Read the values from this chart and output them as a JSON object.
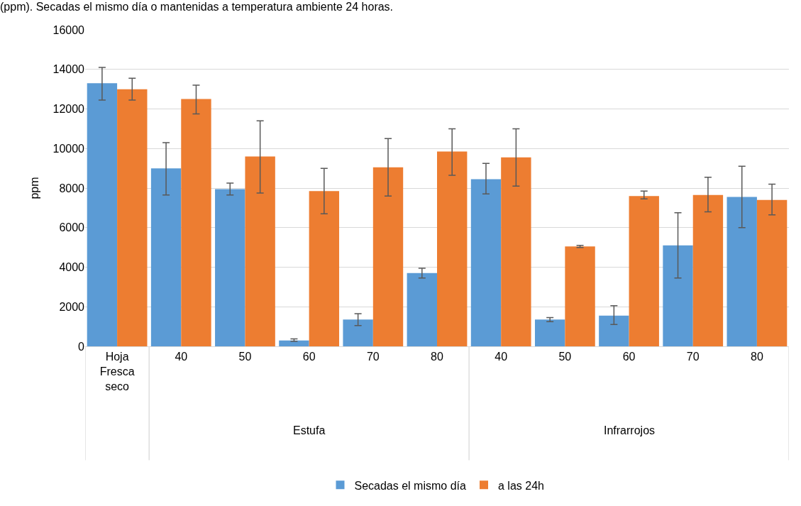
{
  "chart_data": {
    "type": "bar",
    "title": "(ppm). Secadas el mismo día o mantenidas a temperatura ambiente 24 horas.",
    "ylabel": "ppm",
    "categories": [
      "Hoja Fresca seco",
      "40",
      "50",
      "60",
      "70",
      "80",
      "40",
      "50",
      "60",
      "70",
      "80"
    ],
    "series": [
      {
        "name": "Secadas el mismo día",
        "color": "#5b9bd5",
        "values": [
          13300,
          9000,
          7950,
          300,
          1350,
          3700,
          8450,
          1350,
          1550,
          5100,
          7550
        ],
        "errors": [
          [
            12450,
            14100
          ],
          [
            7650,
            10300
          ],
          [
            7650,
            8250
          ],
          [
            250,
            380
          ],
          [
            1050,
            1650
          ],
          [
            3450,
            3950
          ],
          [
            7700,
            9250
          ],
          [
            1250,
            1450
          ],
          [
            1100,
            2050
          ],
          [
            3450,
            6750
          ],
          [
            6000,
            9100
          ]
        ]
      },
      {
        "name": "a las 24h",
        "color": "#ed7d31",
        "values": [
          13000,
          12500,
          9600,
          7850,
          9050,
          9850,
          9550,
          5050,
          7600,
          7650,
          7400
        ],
        "errors": [
          [
            12450,
            13550
          ],
          [
            11750,
            13200
          ],
          [
            7750,
            11400
          ],
          [
            6700,
            9000
          ],
          [
            7600,
            10500
          ],
          [
            8650,
            11000
          ],
          [
            8100,
            11000
          ],
          [
            5000,
            5100
          ],
          [
            7450,
            7850
          ],
          [
            6800,
            8550
          ],
          [
            6650,
            8200
          ]
        ]
      }
    ],
    "annotations": [
      "Estufa",
      "Infrarrojos"
    ],
    "ylim": [
      0,
      16000
    ],
    "yticks": [
      0,
      2000,
      4000,
      6000,
      8000,
      10000,
      12000,
      14000,
      16000
    ],
    "grid": "y",
    "legend": "bottom"
  }
}
